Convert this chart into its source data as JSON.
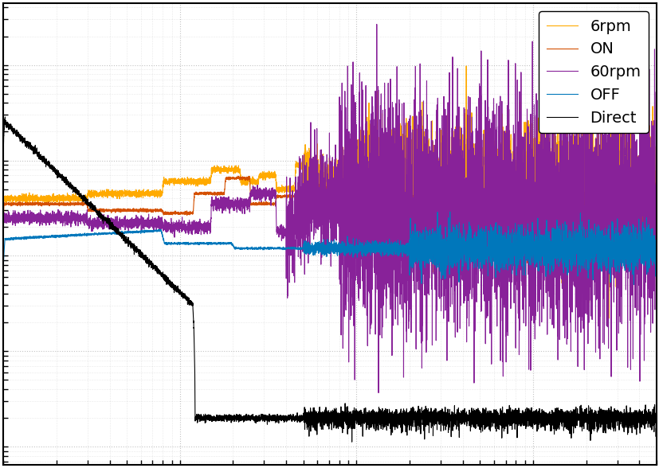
{
  "legend_labels": [
    "OFF",
    "ON",
    "6rpm",
    "60rpm",
    "Direct"
  ],
  "colors": [
    "#0077bb",
    "#d45000",
    "#ffaa00",
    "#882299",
    "#000000"
  ],
  "linewidths": [
    0.8,
    0.8,
    0.8,
    0.8,
    0.8
  ],
  "xlim": [
    1,
    5000
  ],
  "background_color": "#ffffff",
  "grid_color": "#aaaaaa",
  "legend_fontsize": 14,
  "seed": 12345
}
